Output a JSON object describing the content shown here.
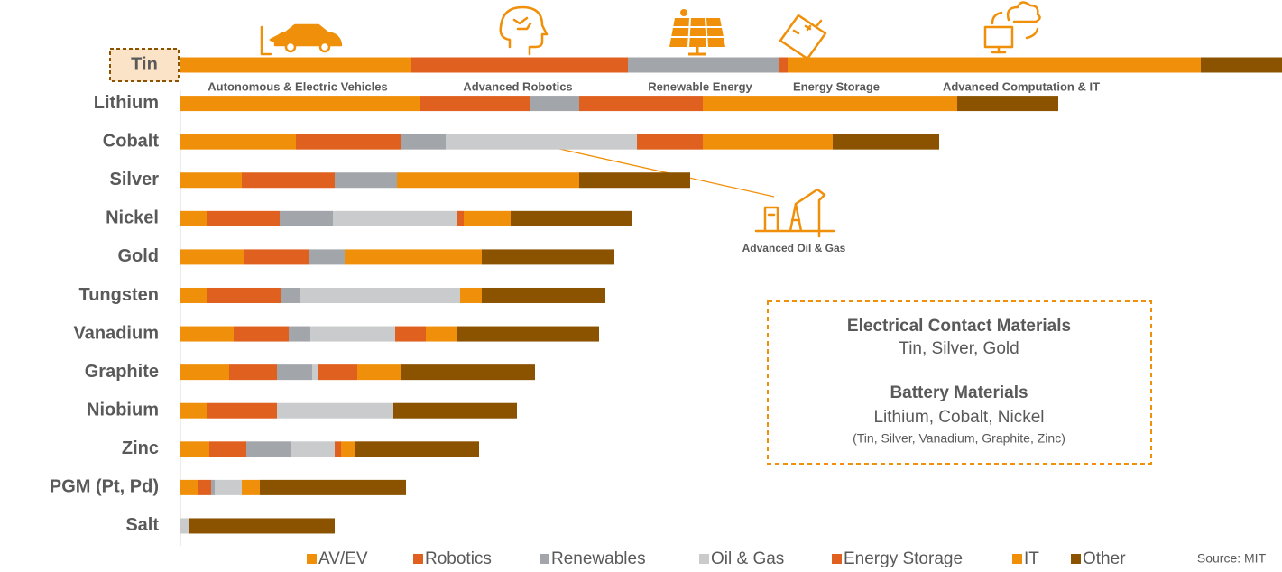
{
  "chart_data": {
    "type": "bar",
    "orientation": "horizontal",
    "stacked": true,
    "categories": [
      "Tin",
      "Lithium",
      "Cobalt",
      "Silver",
      "Nickel",
      "Gold",
      "Tungsten",
      "Vanadium",
      "Graphite",
      "Niobium",
      "Zinc",
      "PGM (Pt, Pd)",
      "Salt"
    ],
    "highlight": "Tin",
    "xlim": [
      0,
      1221
    ],
    "series": [
      {
        "name": "AV/EV",
        "color": "#f0900a",
        "values": [
          256,
          265,
          128,
          68,
          29,
          71,
          29,
          59,
          54,
          29,
          32,
          19,
          0
        ]
      },
      {
        "name": "Robotics",
        "color": "#e0601f",
        "values": [
          240,
          123,
          117,
          103,
          81,
          71,
          83,
          61,
          53,
          78,
          41,
          15,
          0
        ]
      },
      {
        "name": "Renewables",
        "color": "#a2a6aa",
        "values": [
          168,
          54,
          49,
          69,
          59,
          40,
          20,
          24,
          39,
          0,
          49,
          4,
          0
        ]
      },
      {
        "name": "Oil & Gas",
        "color": "#c9cbcd",
        "values": [
          0,
          0,
          212,
          0,
          138,
          0,
          178,
          94,
          6,
          129,
          49,
          30,
          10
        ]
      },
      {
        "name": "Energy Storage",
        "color": "#e0601f",
        "values": [
          9,
          137,
          73,
          0,
          7,
          0,
          0,
          34,
          44,
          0,
          7,
          0,
          0
        ]
      },
      {
        "name": "IT",
        "color": "#f0900a",
        "values": [
          458,
          282,
          144,
          202,
          52,
          152,
          24,
          35,
          49,
          0,
          16,
          20,
          0
        ]
      },
      {
        "name": "Other",
        "color": "#8b5300",
        "values": [
          90,
          112,
          118,
          123,
          135,
          147,
          137,
          157,
          148,
          137,
          137,
          162,
          161
        ]
      }
    ],
    "applications": [
      "Autonomous & Electric Vehicles",
      "Advanced Robotics",
      "Renewable Energy",
      "Energy Storage",
      "Advanced Computation & IT"
    ],
    "oil_gas_label": "Advanced Oil & Gas",
    "callout_box": [
      {
        "title": "Electrical Contact Materials",
        "text": "Tin, Silver, Gold"
      },
      {
        "title": "Battery Materials",
        "text": "Lithium, Cobalt, Nickel",
        "note": "(Tin, Silver, Vanadium, Graphite, Zinc)"
      }
    ],
    "source": "Source: MIT"
  }
}
